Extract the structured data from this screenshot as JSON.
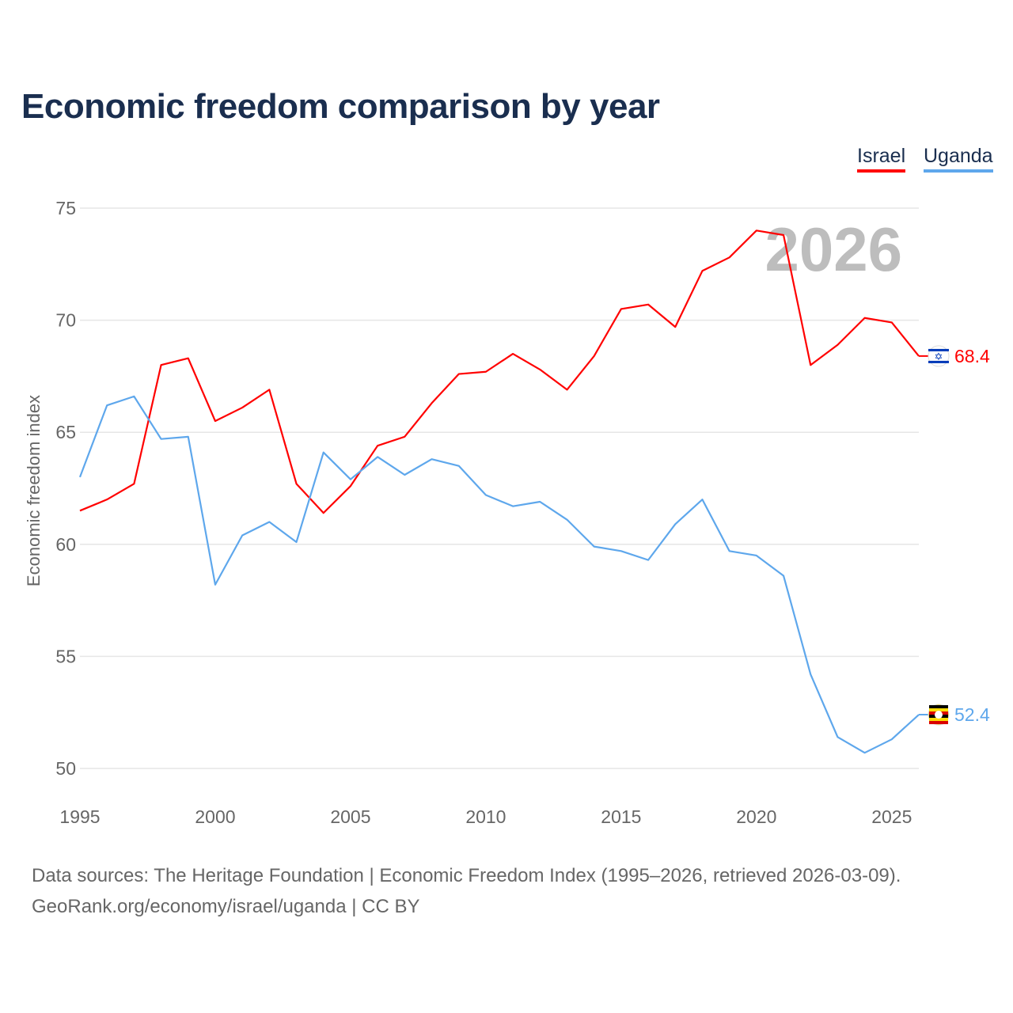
{
  "title": "Economic freedom comparison by year",
  "footer": {
    "line1": "Data sources: The Heritage Foundation | Economic Freedom Index (1995–2026, retrieved 2026-03-09).",
    "line2": "GeoRank.org/economy/israel/uganda | CC BY"
  },
  "chart_data": {
    "type": "line",
    "title": "Economic freedom comparison by year",
    "xlabel": "",
    "ylabel": "Economic freedom index",
    "year_watermark": "2026",
    "xlim": [
      1995,
      2026
    ],
    "ylim": [
      50,
      75
    ],
    "xticks": [
      "1995",
      "2000",
      "2005",
      "2010",
      "2015",
      "2020",
      "2025"
    ],
    "yticks": [
      "50",
      "55",
      "60",
      "65",
      "70",
      "75"
    ],
    "grid": true,
    "legend_position": "top-right",
    "x": [
      1995,
      1996,
      1997,
      1998,
      1999,
      2000,
      2001,
      2002,
      2003,
      2004,
      2005,
      2006,
      2007,
      2008,
      2009,
      2010,
      2011,
      2012,
      2013,
      2014,
      2015,
      2016,
      2017,
      2018,
      2019,
      2020,
      2021,
      2022,
      2023,
      2024,
      2025,
      2026
    ],
    "series": [
      {
        "name": "Israel",
        "color": "#ff0000",
        "end_label": "68.4",
        "values": [
          61.5,
          62.0,
          62.7,
          68.0,
          68.3,
          65.5,
          66.1,
          66.9,
          62.7,
          61.4,
          62.6,
          64.4,
          64.8,
          66.3,
          67.6,
          67.7,
          68.5,
          67.8,
          66.9,
          68.4,
          70.5,
          70.7,
          69.7,
          72.2,
          72.8,
          74.0,
          73.8,
          68.0,
          68.9,
          70.1,
          69.9,
          68.4
        ]
      },
      {
        "name": "Uganda",
        "color": "#5ea7ec",
        "end_label": "52.4",
        "values": [
          63.0,
          66.2,
          66.6,
          64.7,
          64.8,
          58.2,
          60.4,
          61.0,
          60.1,
          64.1,
          62.9,
          63.9,
          63.1,
          63.8,
          63.5,
          62.2,
          61.7,
          61.9,
          61.1,
          59.9,
          59.7,
          59.3,
          60.9,
          62.0,
          59.7,
          59.5,
          58.6,
          54.2,
          51.4,
          50.7,
          51.3,
          52.4
        ]
      }
    ]
  }
}
